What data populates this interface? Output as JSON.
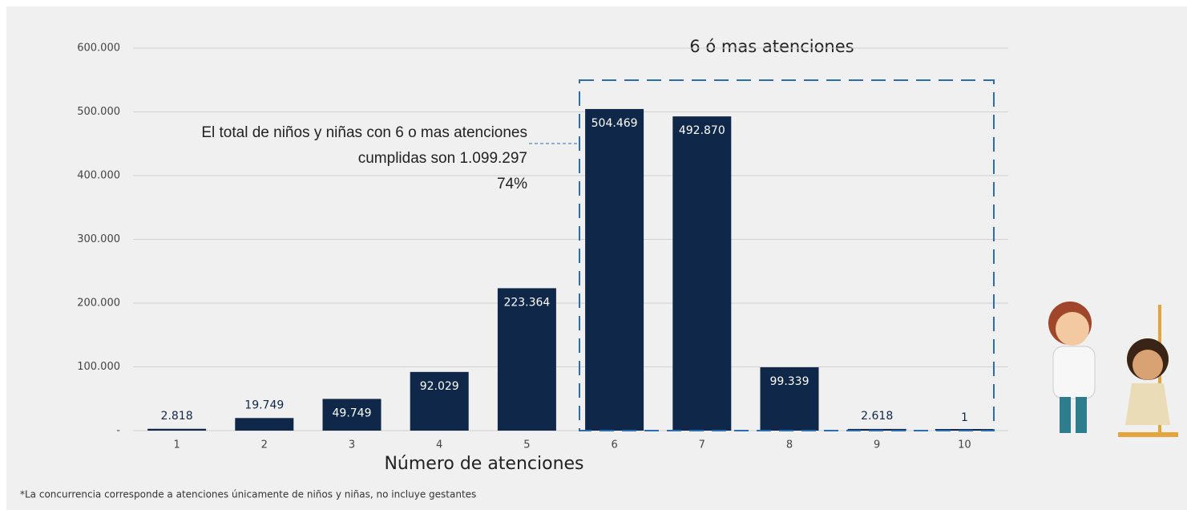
{
  "chart_data": {
    "type": "bar",
    "categories": [
      "1",
      "2",
      "3",
      "4",
      "5",
      "6",
      "7",
      "8",
      "9",
      "10"
    ],
    "values": [
      2818,
      19749,
      49749,
      92029,
      223364,
      504469,
      492870,
      99339,
      2618,
      1
    ],
    "value_labels": [
      "2.818",
      "19.749",
      "49.749",
      "92.029",
      "223.364",
      "504.469",
      "492.870",
      "99.339",
      "2.618",
      "1"
    ],
    "color": "#0f2748",
    "ylim": [
      0,
      600000
    ],
    "yticks": [
      {
        "value": 0,
        "label": "-"
      },
      {
        "value": 100000,
        "label": "100.000"
      },
      {
        "value": 200000,
        "label": "200.000"
      },
      {
        "value": 300000,
        "label": "300.000"
      },
      {
        "value": 400000,
        "label": "400.000"
      },
      {
        "value": 500000,
        "label": "500.000"
      },
      {
        "value": 600000,
        "label": "600.000"
      }
    ],
    "grid": true,
    "x_label": "Número de atenciones",
    "annotations": [
      "6 ó mas atenciones",
      "El total de niños y niñas con 6 o mas atenciones",
      "cumplidas son 1.099.297",
      "74%"
    ],
    "footnote": "*La concurrencia corresponde a atenciones únicamente de niños y niñas, no incluye gestantes"
  }
}
